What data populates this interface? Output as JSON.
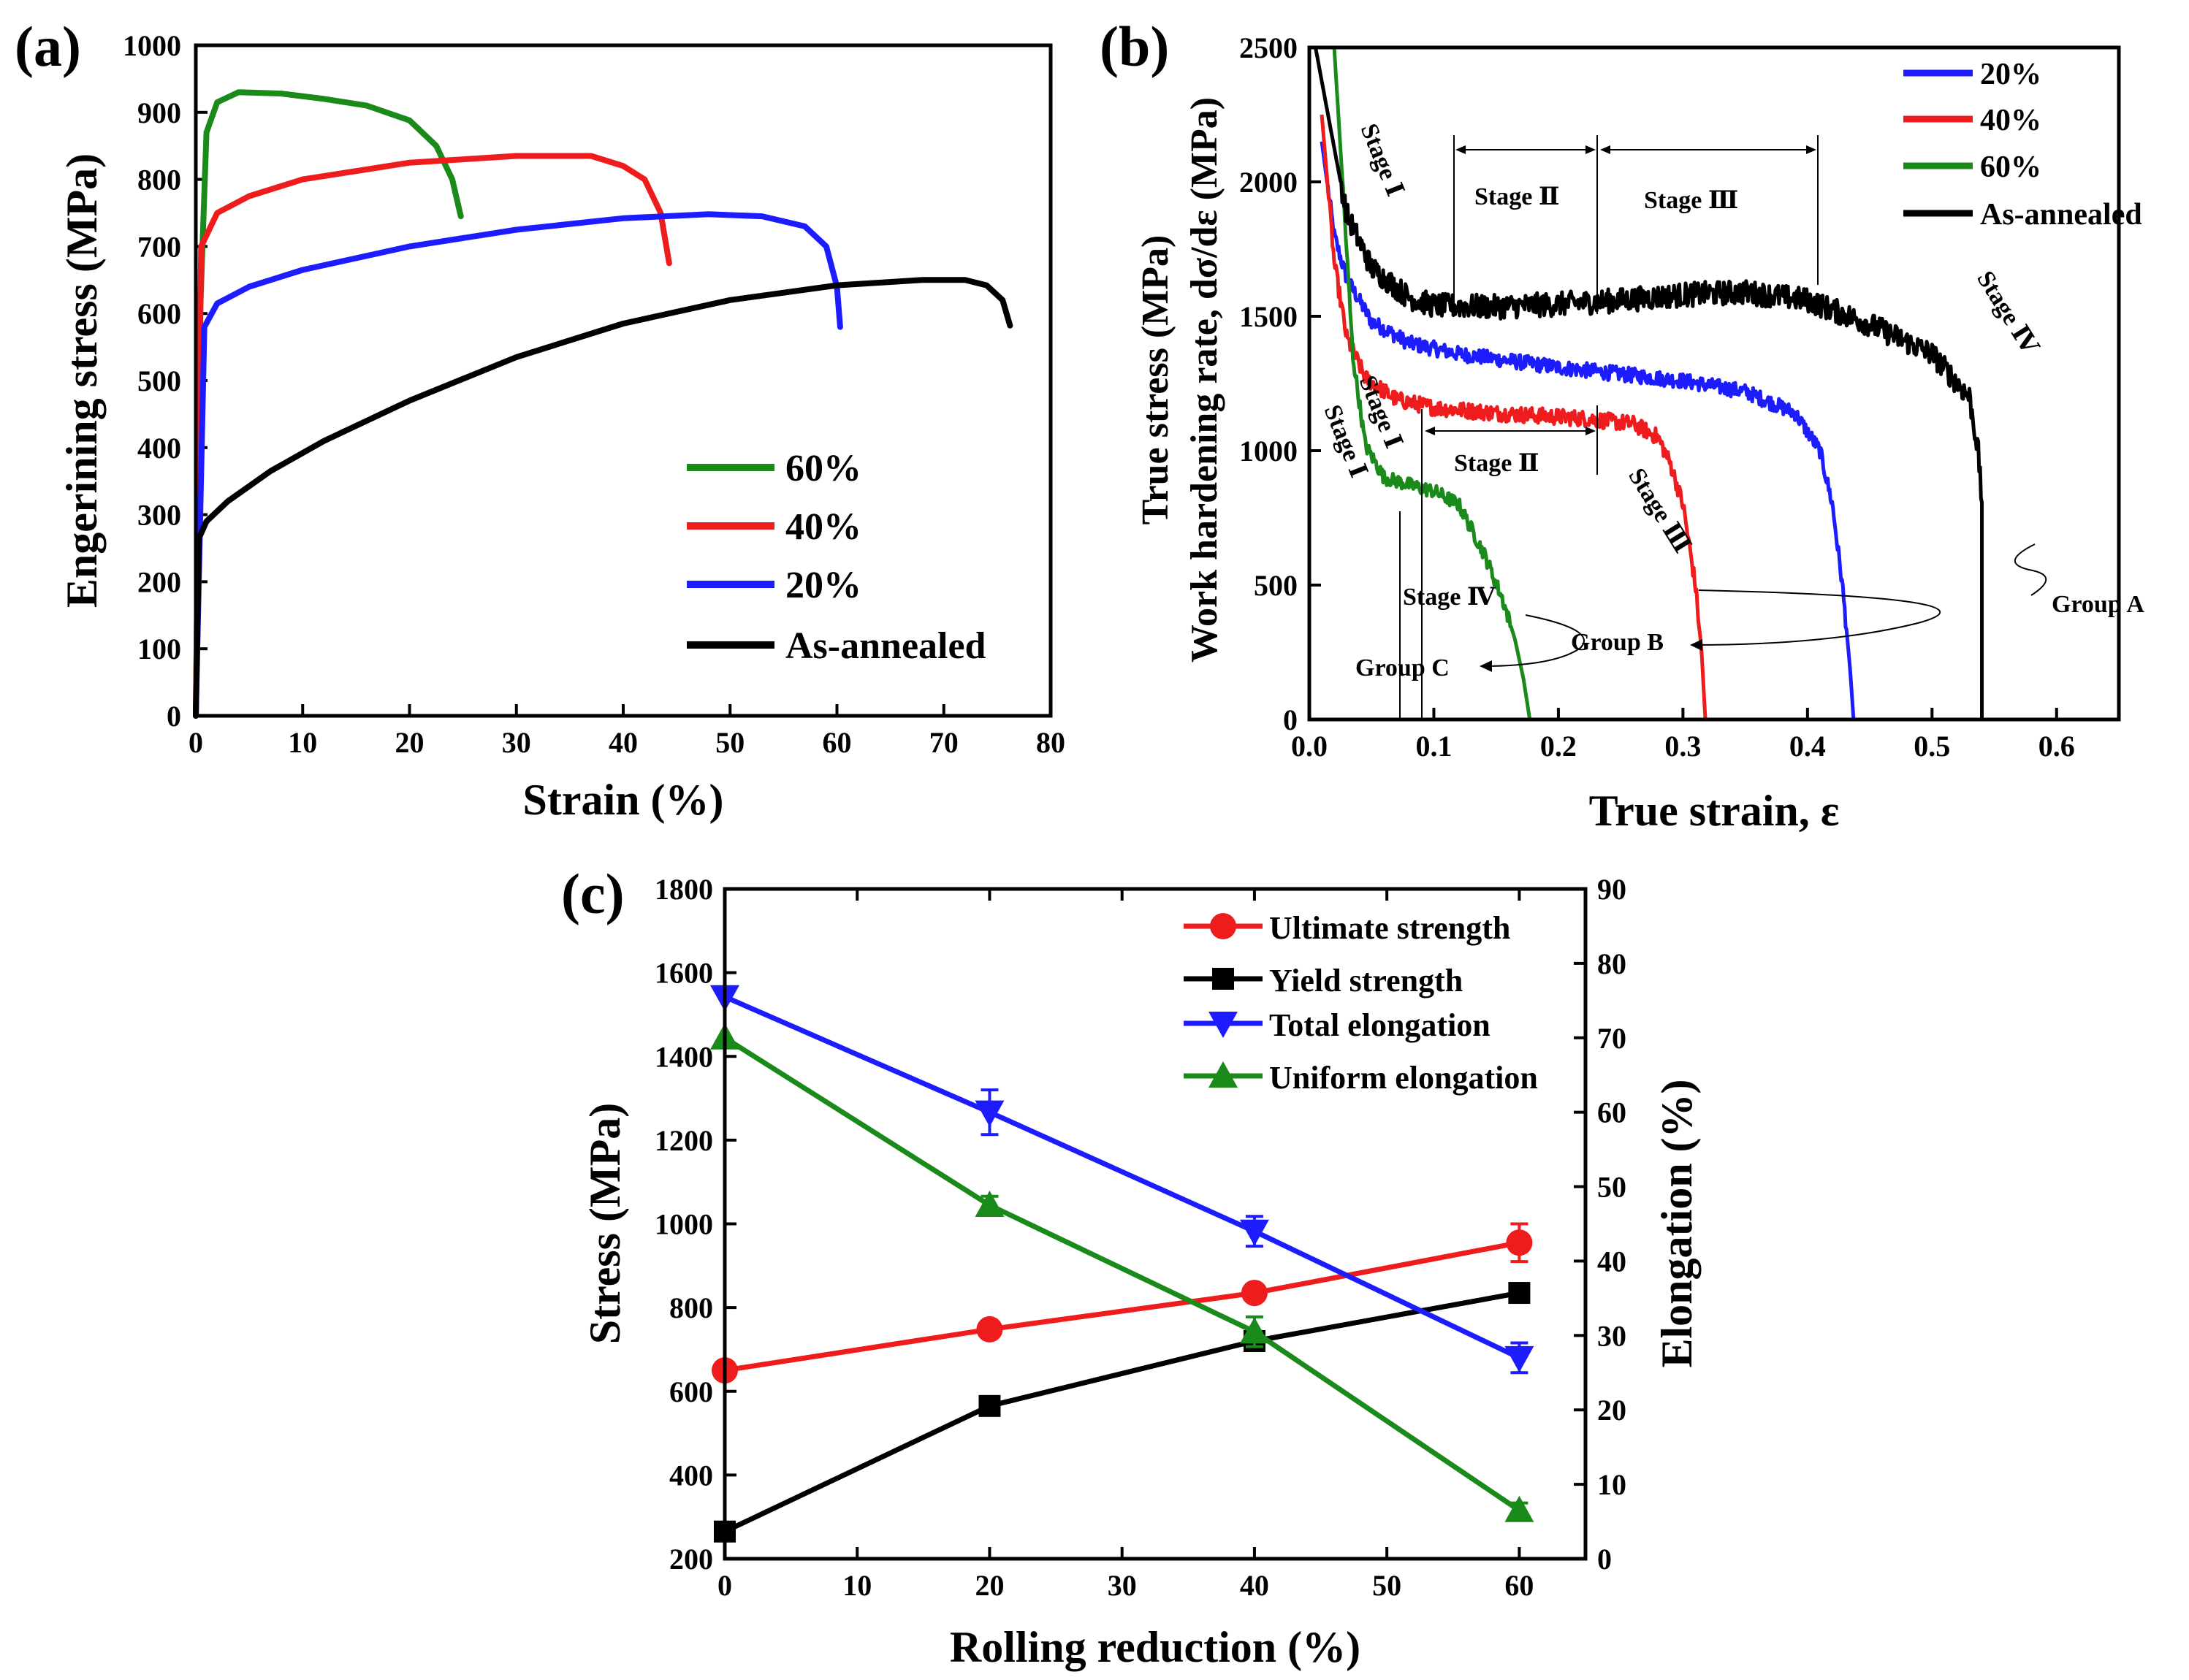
{
  "chart_data": [
    {
      "panel": "(a)",
      "type": "line",
      "title": "",
      "xlabel": "Strain (%)",
      "ylabel": "Engerining stress (MPa)",
      "xlim": [
        0,
        80
      ],
      "ylim": [
        0,
        1000
      ],
      "xticks": [
        "0",
        "10",
        "20",
        "30",
        "40",
        "50",
        "60",
        "70",
        "80"
      ],
      "yticks": [
        "0",
        "100",
        "200",
        "300",
        "400",
        "500",
        "600",
        "700",
        "800",
        "900",
        "1000"
      ],
      "legend_position": "bottom-right",
      "series": [
        {
          "name": "60%",
          "color": "#1a8a1a",
          "points": [
            [
              0,
              0
            ],
            [
              0.4,
              600
            ],
            [
              1,
              870
            ],
            [
              2,
              915
            ],
            [
              4,
              930
            ],
            [
              8,
              928
            ],
            [
              12,
              920
            ],
            [
              16,
              910
            ],
            [
              20,
              888
            ],
            [
              22.5,
              850
            ],
            [
              24,
              800
            ],
            [
              24.8,
              745
            ]
          ]
        },
        {
          "name": "40%",
          "color": "#ee1c1c",
          "points": [
            [
              0,
              0
            ],
            [
              0.5,
              700
            ],
            [
              2,
              750
            ],
            [
              5,
              775
            ],
            [
              10,
              800
            ],
            [
              20,
              825
            ],
            [
              30,
              835
            ],
            [
              37,
              835
            ],
            [
              40,
              820
            ],
            [
              42,
              800
            ],
            [
              43.5,
              750
            ],
            [
              44.3,
              675
            ]
          ]
        },
        {
          "name": "20%",
          "color": "#1c1cff",
          "points": [
            [
              0,
              0
            ],
            [
              0.8,
              580
            ],
            [
              2,
              615
            ],
            [
              5,
              640
            ],
            [
              10,
              665
            ],
            [
              20,
              700
            ],
            [
              30,
              725
            ],
            [
              40,
              742
            ],
            [
              48,
              748
            ],
            [
              53,
              745
            ],
            [
              57,
              730
            ],
            [
              59,
              700
            ],
            [
              60,
              640
            ],
            [
              60.3,
              580
            ]
          ]
        },
        {
          "name": "As-annealed",
          "color": "#000000",
          "points": [
            [
              0,
              0
            ],
            [
              0.3,
              265
            ],
            [
              1,
              290
            ],
            [
              3,
              320
            ],
            [
              7,
              365
            ],
            [
              12,
              410
            ],
            [
              20,
              470
            ],
            [
              30,
              535
            ],
            [
              40,
              585
            ],
            [
              50,
              620
            ],
            [
              60,
              642
            ],
            [
              68,
              650
            ],
            [
              72,
              650
            ],
            [
              74,
              642
            ],
            [
              75.5,
              620
            ],
            [
              76.2,
              582
            ]
          ]
        }
      ]
    },
    {
      "panel": "(b)",
      "type": "line",
      "title": "",
      "xlabel": "True strain, ε",
      "ylabel": "True stress (MPa), Work hardening rate, dσ/dε (MPa)",
      "ylabel_line1": "True stress (MPa)",
      "ylabel_line2": "Work hardening rate, dσ/dε (MPa)",
      "xlim": [
        0.0,
        0.65
      ],
      "ylim": [
        0,
        2500
      ],
      "xticks": [
        "0.0",
        "0.1",
        "0.2",
        "0.3",
        "0.4",
        "0.5",
        "0.6"
      ],
      "yticks": [
        "0",
        "500",
        "1000",
        "1500",
        "2000",
        "2500"
      ],
      "legend_position": "top-right",
      "series": [
        {
          "name": "20%",
          "color": "#1c1cff",
          "noise": 28,
          "points": [
            [
              0.01,
              2150
            ],
            [
              0.02,
              1800
            ],
            [
              0.03,
              1640
            ],
            [
              0.05,
              1480
            ],
            [
              0.08,
              1400
            ],
            [
              0.12,
              1360
            ],
            [
              0.2,
              1310
            ],
            [
              0.3,
              1260
            ],
            [
              0.35,
              1220
            ],
            [
              0.39,
              1140
            ],
            [
              0.41,
              1000
            ],
            [
              0.42,
              800
            ],
            [
              0.428,
              500
            ],
            [
              0.434,
              200
            ],
            [
              0.437,
              0
            ]
          ]
        },
        {
          "name": "40%",
          "color": "#ee1c1c",
          "noise": 30,
          "points": [
            [
              0.01,
              2250
            ],
            [
              0.02,
              1700
            ],
            [
              0.03,
              1420
            ],
            [
              0.045,
              1270
            ],
            [
              0.07,
              1190
            ],
            [
              0.1,
              1160
            ],
            [
              0.15,
              1140
            ],
            [
              0.22,
              1120
            ],
            [
              0.26,
              1100
            ],
            [
              0.28,
              1050
            ],
            [
              0.29,
              950
            ],
            [
              0.3,
              800
            ],
            [
              0.31,
              500
            ],
            [
              0.315,
              250
            ],
            [
              0.318,
              0
            ]
          ]
        },
        {
          "name": "60%",
          "color": "#1a8a1a",
          "noise": 26,
          "points": [
            [
              0.02,
              2500
            ],
            [
              0.028,
              1900
            ],
            [
              0.035,
              1350
            ],
            [
              0.045,
              1020
            ],
            [
              0.06,
              900
            ],
            [
              0.09,
              860
            ],
            [
              0.1,
              850
            ],
            [
              0.12,
              800
            ],
            [
              0.14,
              620
            ],
            [
              0.155,
              450
            ],
            [
              0.165,
              300
            ],
            [
              0.172,
              150
            ],
            [
              0.177,
              0
            ]
          ]
        },
        {
          "name": "As-annealed",
          "color": "#000000",
          "noise": 45,
          "points": [
            [
              0.005,
              2500
            ],
            [
              0.015,
              2250
            ],
            [
              0.03,
              1880
            ],
            [
              0.05,
              1680
            ],
            [
              0.08,
              1570
            ],
            [
              0.1,
              1540
            ],
            [
              0.15,
              1535
            ],
            [
              0.2,
              1545
            ],
            [
              0.25,
              1560
            ],
            [
              0.3,
              1580
            ],
            [
              0.35,
              1590
            ],
            [
              0.4,
              1560
            ],
            [
              0.45,
              1470
            ],
            [
              0.5,
              1360
            ],
            [
              0.53,
              1200
            ],
            [
              0.537,
              1000
            ],
            [
              0.54,
              800
            ],
            [
              0.54,
              0
            ]
          ]
        }
      ],
      "annotations": {
        "stage_i_black": "Stage Ⅰ",
        "stage_ii_black": "Stage Ⅱ",
        "stage_iii_black": "Stage Ⅲ",
        "stage_iv_black": "Stage Ⅳ",
        "stage_i_red": "Stage Ⅰ",
        "stage_i_green": "Stage Ⅰ",
        "stage_ii_red": "Stage Ⅱ",
        "stage_iii_red": "Stage Ⅲ",
        "stage_iv_green": "Stage Ⅳ",
        "group_a": "Group A",
        "group_b": "Group B",
        "group_c": "Group C"
      }
    },
    {
      "panel": "(c)",
      "type": "line",
      "title": "",
      "xlabel": "Rolling reduction (%)",
      "ylabel": "Stress (MPa)",
      "ylabel_right": "Elongation (%)",
      "xlim": [
        0,
        65
      ],
      "ylim": [
        200,
        1800
      ],
      "ylim_right": [
        0,
        90
      ],
      "xticks": [
        "0",
        "10",
        "20",
        "30",
        "40",
        "50",
        "60"
      ],
      "yticks": [
        "200",
        "400",
        "600",
        "800",
        "1000",
        "1200",
        "1400",
        "1600",
        "1800"
      ],
      "yticks_right": [
        "0",
        "10",
        "20",
        "30",
        "40",
        "50",
        "60",
        "70",
        "80",
        "90"
      ],
      "x": [
        0,
        20,
        40,
        60
      ],
      "legend_position": "top-right",
      "series": [
        {
          "name": "Ultimate strength",
          "axis": "left",
          "color": "#ee1c1c",
          "marker": "circle",
          "values": [
            650,
            748,
            835,
            955
          ],
          "errors": [
            0,
            0,
            0,
            45
          ]
        },
        {
          "name": "Yield strength",
          "axis": "left",
          "color": "#000000",
          "marker": "square",
          "values": [
            265,
            565,
            720,
            835
          ],
          "errors": [
            0,
            0,
            0,
            0
          ]
        },
        {
          "name": "Total elongation",
          "axis": "right",
          "color": "#1c1cff",
          "marker": "triangle-down",
          "values": [
            75.5,
            60,
            44,
            27
          ],
          "errors": [
            0,
            3,
            2,
            2
          ]
        },
        {
          "name": "Uniform elongation",
          "axis": "right",
          "color": "#1a8a1a",
          "marker": "triangle-up",
          "values": [
            70,
            47.5,
            30.5,
            6.5
          ],
          "errors": [
            0,
            1.2,
            2,
            1
          ]
        }
      ]
    }
  ]
}
